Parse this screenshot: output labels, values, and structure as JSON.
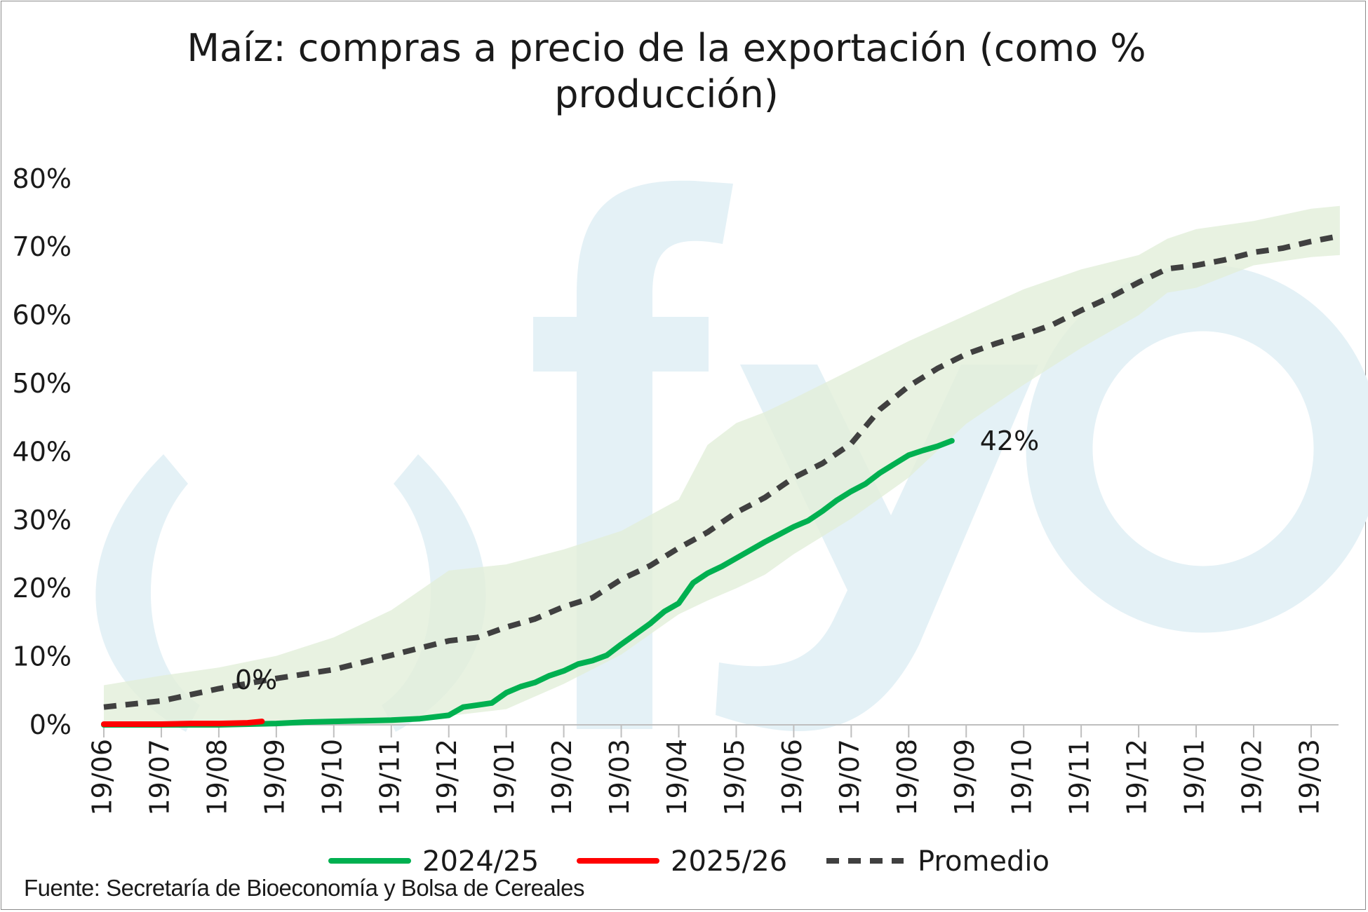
{
  "chart_data": {
    "type": "line",
    "title": "Maíz: compras a precio de la exportación (como % producción)",
    "xlabel": "",
    "ylabel": "",
    "ylim": [
      0,
      80
    ],
    "yticks": [
      "0%",
      "10%",
      "20%",
      "30%",
      "40%",
      "50%",
      "60%",
      "70%",
      "80%"
    ],
    "x_categories": [
      "19/06",
      "19/07",
      "19/08",
      "19/09",
      "19/10",
      "19/11",
      "19/12",
      "19/01",
      "19/02",
      "19/03",
      "19/04",
      "19/05",
      "19/06",
      "19/07",
      "19/08",
      "19/09",
      "19/10",
      "19/11",
      "19/12",
      "19/01",
      "19/02",
      "19/03"
    ],
    "legend_position": "bottom",
    "grid": false,
    "series": [
      {
        "name": "2024/25",
        "color": "#00b050",
        "style": "solid",
        "x": [
          0,
          1,
          2,
          3,
          3.5,
          4,
          4.5,
          5,
          5.5,
          6,
          6.25,
          6.5,
          6.75,
          7,
          7.25,
          7.5,
          7.75,
          8,
          8.25,
          8.5,
          8.75,
          9,
          9.25,
          9.5,
          9.75,
          10,
          10.25,
          10.5,
          10.75,
          11,
          11.25,
          11.5,
          11.75,
          12,
          12.25,
          12.5,
          12.75,
          13,
          13.25,
          13.5,
          13.75,
          14,
          14.25,
          14.5,
          14.75
        ],
        "values": [
          0,
          0,
          0,
          0.2,
          0.4,
          0.5,
          0.6,
          0.7,
          0.9,
          1.4,
          2.6,
          2.9,
          3.2,
          4.7,
          5.6,
          6.2,
          7.2,
          7.9,
          8.9,
          9.4,
          10.2,
          11.8,
          13.3,
          14.8,
          16.6,
          17.8,
          20.8,
          22.2,
          23.2,
          24.4,
          25.6,
          26.8,
          27.9,
          29.0,
          29.9,
          31.3,
          32.9,
          34.2,
          35.3,
          36.9,
          38.2,
          39.5,
          40.2,
          40.8,
          41.6
        ],
        "end_label": "42%"
      },
      {
        "name": "2025/26",
        "color": "#ff0000",
        "style": "solid",
        "x": [
          0,
          0.5,
          1,
          1.5,
          2,
          2.5,
          2.75
        ],
        "values": [
          0.1,
          0.1,
          0.1,
          0.2,
          0.2,
          0.3,
          0.5
        ],
        "end_label": "0%"
      },
      {
        "name": "Promedio",
        "color": "#404040",
        "style": "dashed",
        "x": [
          0,
          1,
          2,
          3,
          4,
          5,
          6,
          6.5,
          7,
          7.5,
          8,
          8.5,
          9,
          9.5,
          10,
          10.5,
          11,
          11.5,
          12,
          12.5,
          13,
          13.5,
          14,
          14.5,
          15,
          15.5,
          16,
          16.5,
          17,
          17.5,
          18,
          18.5,
          19,
          19.5,
          20,
          20.5,
          21,
          21.5
        ],
        "values": [
          2.6,
          3.5,
          5.3,
          6.8,
          8.1,
          10.2,
          12.3,
          12.8,
          14.3,
          15.5,
          17.3,
          18.6,
          21.3,
          23.3,
          25.9,
          28.2,
          31.1,
          33.3,
          36.2,
          38.3,
          41.2,
          46.2,
          49.6,
          52.2,
          54.3,
          55.8,
          57.1,
          58.6,
          60.7,
          62.6,
          64.8,
          66.8,
          67.3,
          68.1,
          69.2,
          69.8,
          70.8,
          71.6
        ]
      }
    ],
    "range_band": {
      "color": "#e2efd9",
      "x": [
        0,
        1,
        2,
        3,
        4,
        5,
        6,
        7,
        8,
        9,
        10,
        10.5,
        11,
        11.5,
        12,
        13,
        14,
        15,
        16,
        17,
        18,
        18.5,
        19,
        20,
        21,
        21.5
      ],
      "upper": [
        5.8,
        7.2,
        8.4,
        10.1,
        12.8,
        16.8,
        22.6,
        23.5,
        25.7,
        28.4,
        33.0,
        41.0,
        44.2,
        45.8,
        47.8,
        52.0,
        56.2,
        60.0,
        63.8,
        66.7,
        68.8,
        71.2,
        72.6,
        73.8,
        75.6,
        76.0
      ],
      "lower": [
        0,
        0,
        0,
        0,
        0,
        0,
        1.3,
        2.3,
        6.0,
        10.3,
        16.2,
        18.2,
        20.0,
        22.0,
        25.0,
        30.2,
        36.2,
        44.1,
        49.8,
        55.2,
        60.0,
        63.3,
        64.0,
        67.3,
        68.5,
        68.8
      ]
    }
  },
  "legend": [
    {
      "label": "2024/25",
      "color": "#00b050",
      "style": "solid"
    },
    {
      "label": "2025/26",
      "color": "#ff0000",
      "style": "solid"
    },
    {
      "label": "Promedio",
      "color": "#404040",
      "style": "dashed"
    }
  ],
  "watermark": {
    "text": "fyo",
    "color": "#e4f1f6"
  },
  "source": "Fuente: Secretaría de Bioeconomía y Bolsa de Cereales"
}
